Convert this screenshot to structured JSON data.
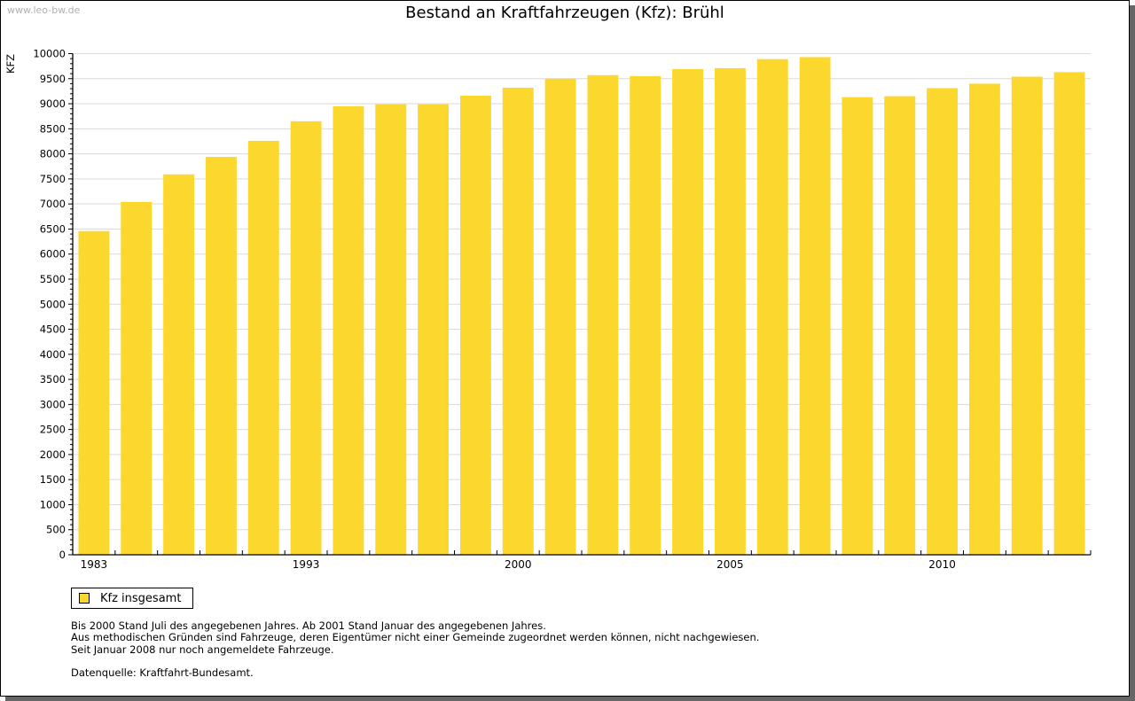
{
  "watermark": "www.leo-bw.de",
  "chart_data": {
    "type": "bar",
    "title": "Bestand an Kraftfahrzeugen (Kfz): Brühl",
    "xlabel": "",
    "ylabel": "KFZ",
    "ylim": [
      0,
      10000
    ],
    "yticks": [
      0,
      500,
      1000,
      1500,
      2000,
      2500,
      3000,
      3500,
      4000,
      4500,
      5000,
      5500,
      6000,
      6500,
      7000,
      7500,
      8000,
      8500,
      9000,
      9500,
      10000
    ],
    "grid": true,
    "categories": [
      "1983",
      "",
      "",
      "",
      "",
      "1993",
      "",
      "",
      "",
      "",
      "2000",
      "",
      "",
      "",
      "",
      "2005",
      "",
      "",
      "",
      "",
      "2010",
      "",
      "",
      ""
    ],
    "series": [
      {
        "name": "Kfz insgesamt",
        "color": "#fcd72e",
        "values": [
          6460,
          7040,
          7590,
          7940,
          8260,
          8650,
          8950,
          8990,
          8990,
          9160,
          9320,
          9500,
          9570,
          9550,
          9690,
          9710,
          9890,
          9930,
          9130,
          9150,
          9310,
          9400,
          9540,
          9630
        ]
      }
    ],
    "legend_position": "bottom-left"
  },
  "legend": {
    "label": "Kfz insgesamt"
  },
  "notes": {
    "lines": [
      "Bis 2000 Stand Juli des angegebenen Jahres. Ab 2001 Stand Januar des angegebenen Jahres.",
      "Aus methodischen Gründen sind Fahrzeuge, deren Eigentümer nicht einer Gemeinde zugeordnet werden können, nicht nachgewiesen.",
      "Seit Januar 2008 nur noch angemeldete Fahrzeuge."
    ],
    "source": "Datenquelle: Kraftfahrt-Bundesamt."
  }
}
